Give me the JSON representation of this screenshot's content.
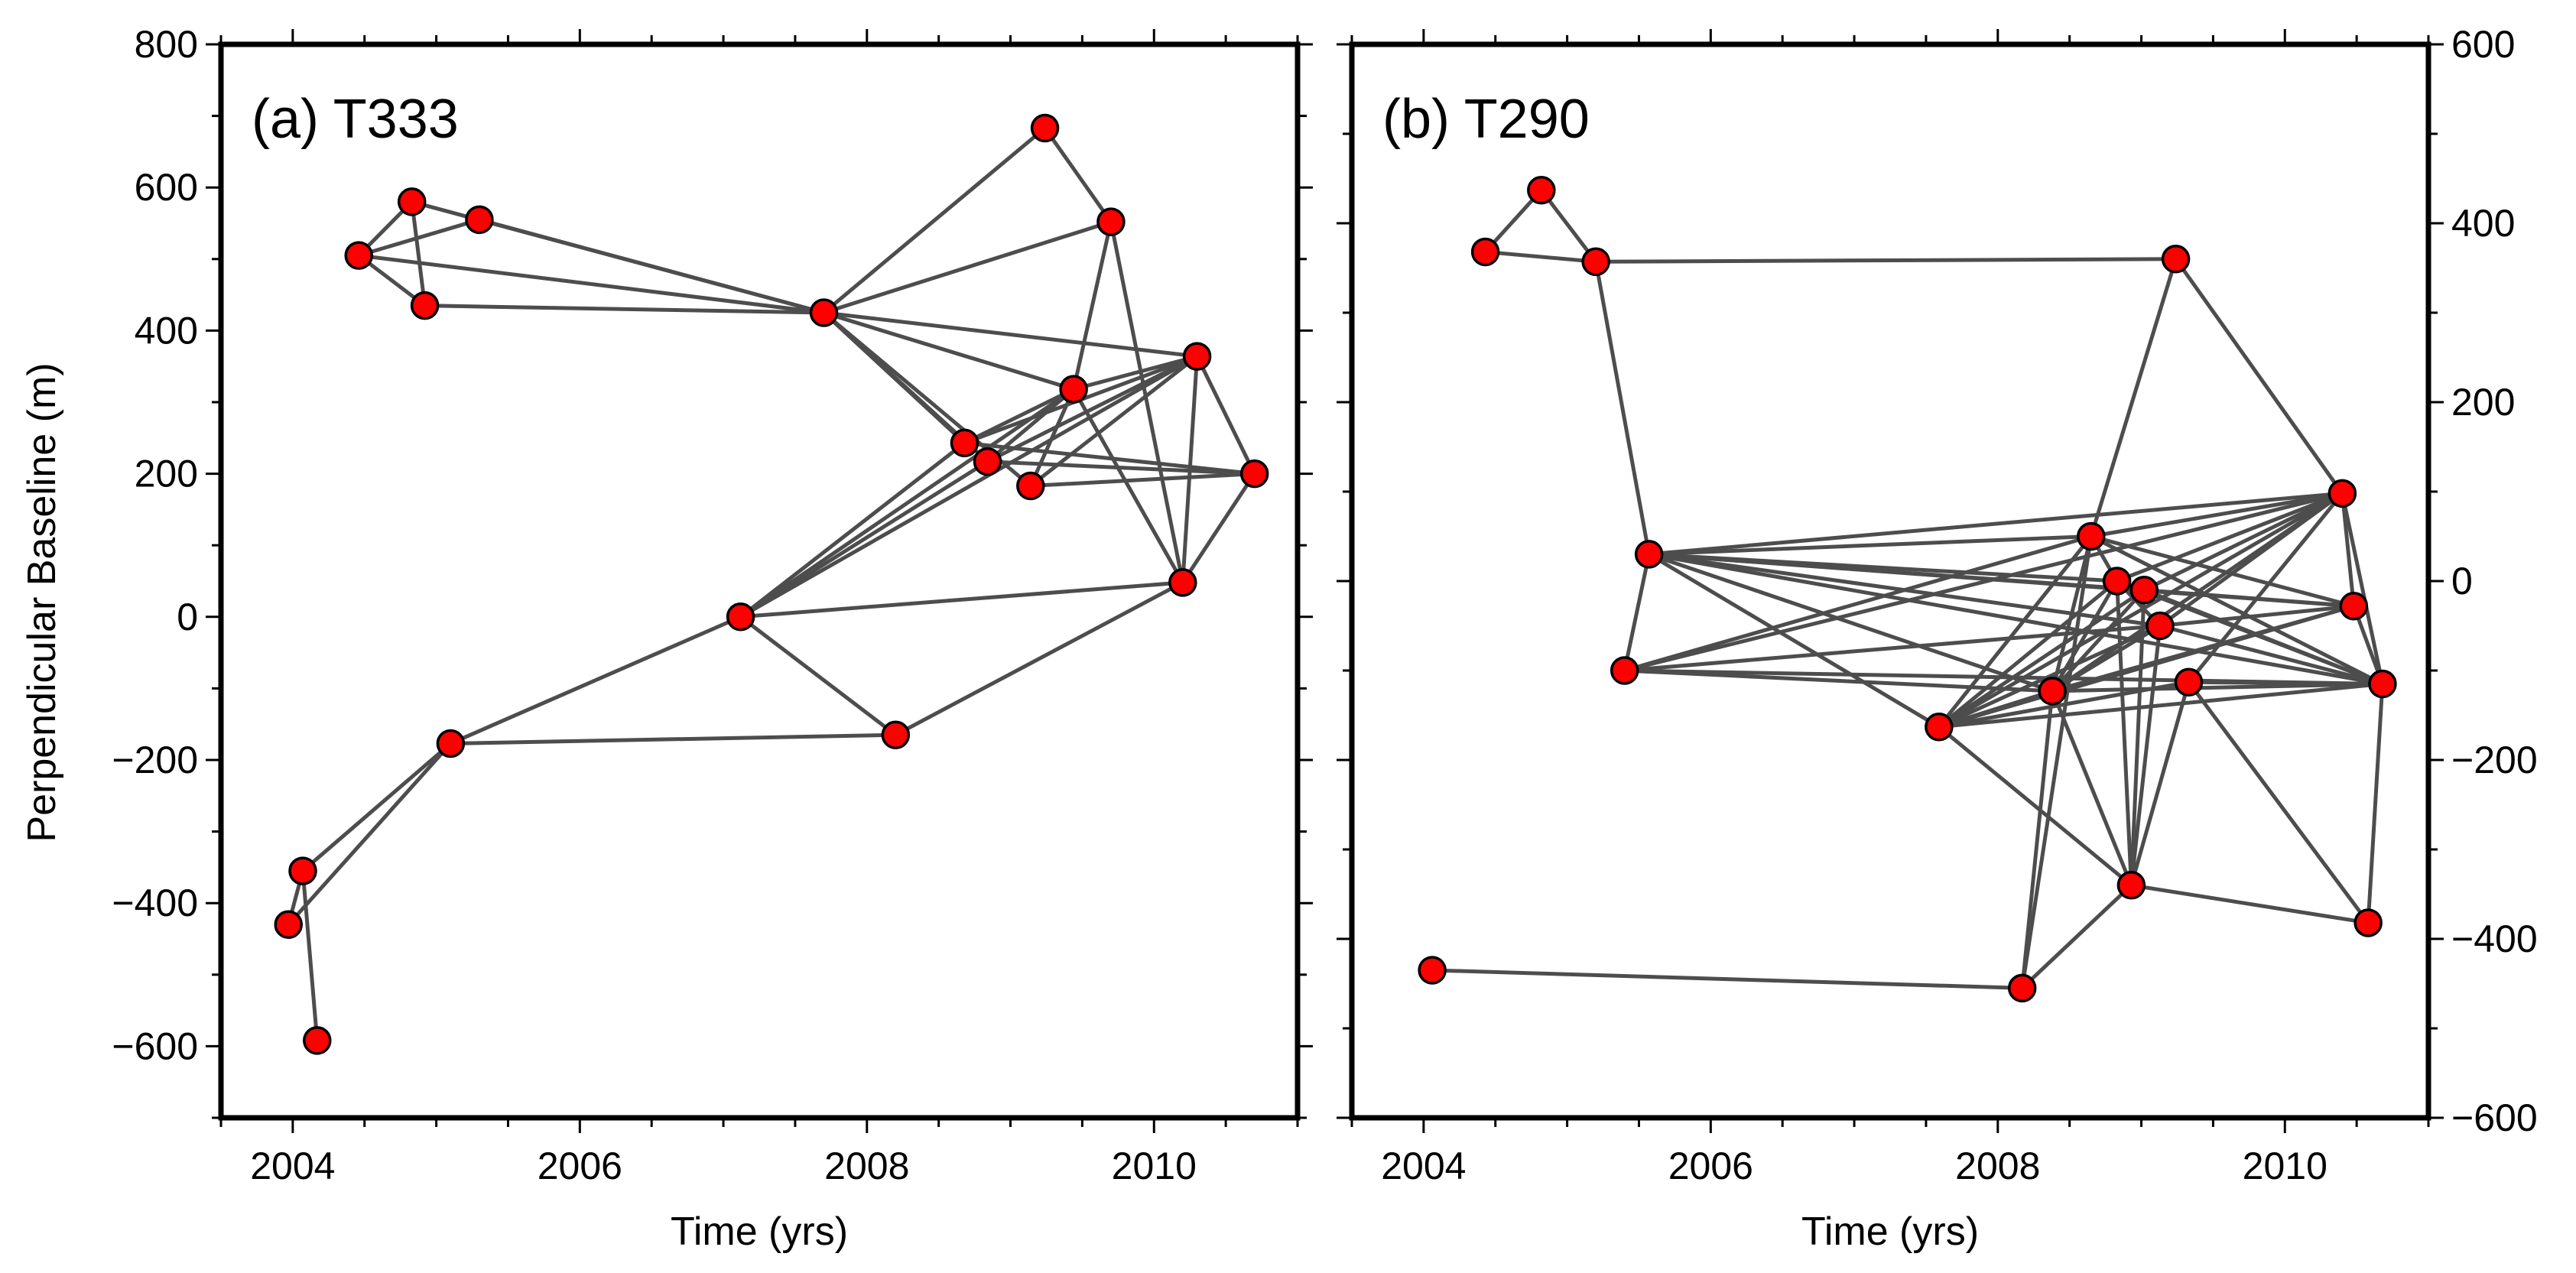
{
  "figure": {
    "ylabel": "Perpendicular Baseline (m)",
    "colors": {
      "node": "#ff0000",
      "edge": "#4d4d4d",
      "frame": "#000000"
    }
  },
  "chart_data": [
    {
      "type": "scatter",
      "title": "(a) T333",
      "xlabel": "Time (yrs)",
      "ylabel": "Perpendicular Baseline (m)",
      "xlim": [
        2003.5,
        2011.0
      ],
      "ylim": [
        -700,
        800
      ],
      "xticks": [
        2004,
        2006,
        2008,
        2010
      ],
      "xtick_labels": [
        "2004",
        "2006",
        "2008",
        "2010"
      ],
      "yticks": [
        -600,
        -400,
        -200,
        0,
        200,
        400,
        600,
        800
      ],
      "ytick_labels": [
        "−600",
        "−400",
        "−200",
        "0",
        "200",
        "400",
        "600",
        "800"
      ],
      "yaxis_side": "left",
      "nodes": [
        {
          "x": 2003.97,
          "y": -430
        },
        {
          "x": 2004.07,
          "y": -355
        },
        {
          "x": 2004.17,
          "y": -592
        },
        {
          "x": 2004.46,
          "y": 505
        },
        {
          "x": 2004.83,
          "y": 580
        },
        {
          "x": 2004.92,
          "y": 435
        },
        {
          "x": 2005.3,
          "y": 555
        },
        {
          "x": 2005.1,
          "y": -177
        },
        {
          "x": 2007.12,
          "y": 0
        },
        {
          "x": 2007.7,
          "y": 425
        },
        {
          "x": 2008.2,
          "y": -165
        },
        {
          "x": 2008.68,
          "y": 243
        },
        {
          "x": 2008.84,
          "y": 217
        },
        {
          "x": 2009.14,
          "y": 183
        },
        {
          "x": 2009.24,
          "y": 683
        },
        {
          "x": 2009.44,
          "y": 318
        },
        {
          "x": 2009.7,
          "y": 552
        },
        {
          "x": 2010.2,
          "y": 48
        },
        {
          "x": 2010.3,
          "y": 364
        },
        {
          "x": 2010.7,
          "y": 200
        }
      ],
      "edges": [
        [
          0,
          1
        ],
        [
          0,
          7
        ],
        [
          1,
          2
        ],
        [
          1,
          7
        ],
        [
          3,
          4
        ],
        [
          3,
          6
        ],
        [
          3,
          5
        ],
        [
          3,
          9
        ],
        [
          4,
          5
        ],
        [
          4,
          9
        ],
        [
          5,
          9
        ],
        [
          6,
          9
        ],
        [
          7,
          8
        ],
        [
          7,
          10
        ],
        [
          8,
          10
        ],
        [
          8,
          11
        ],
        [
          8,
          12
        ],
        [
          8,
          15
        ],
        [
          8,
          17
        ],
        [
          8,
          18
        ],
        [
          9,
          14
        ],
        [
          9,
          16
        ],
        [
          9,
          18
        ],
        [
          9,
          11
        ],
        [
          9,
          12
        ],
        [
          9,
          13
        ],
        [
          9,
          15
        ],
        [
          11,
          18
        ],
        [
          11,
          19
        ],
        [
          11,
          15
        ],
        [
          12,
          18
        ],
        [
          12,
          19
        ],
        [
          12,
          15
        ],
        [
          13,
          18
        ],
        [
          13,
          19
        ],
        [
          13,
          15
        ],
        [
          14,
          16
        ],
        [
          15,
          16
        ],
        [
          15,
          18
        ],
        [
          15,
          17
        ],
        [
          16,
          17
        ],
        [
          17,
          18
        ],
        [
          17,
          19
        ],
        [
          18,
          19
        ],
        [
          10,
          17
        ]
      ]
    },
    {
      "type": "scatter",
      "title": "(b) T290",
      "xlabel": "Time (yrs)",
      "ylabel": "",
      "xlim": [
        2003.5,
        2011.0
      ],
      "ylim": [
        -600,
        600
      ],
      "xticks": [
        2004,
        2006,
        2008,
        2010
      ],
      "xtick_labels": [
        "2004",
        "2006",
        "2008",
        "2010"
      ],
      "yticks": [
        -600,
        -400,
        -200,
        0,
        200,
        400,
        600
      ],
      "ytick_labels": [
        "−600",
        "−400",
        "−200",
        "0",
        "200",
        "400",
        "600"
      ],
      "yaxis_side": "right",
      "nodes": [
        {
          "x": 2004.06,
          "y": -435
        },
        {
          "x": 2004.43,
          "y": 368
        },
        {
          "x": 2004.82,
          "y": 437
        },
        {
          "x": 2005.2,
          "y": 357
        },
        {
          "x": 2005.4,
          "y": -100
        },
        {
          "x": 2005.57,
          "y": 30
        },
        {
          "x": 2007.59,
          "y": -163
        },
        {
          "x": 2008.17,
          "y": -455
        },
        {
          "x": 2008.38,
          "y": -123
        },
        {
          "x": 2008.65,
          "y": 50
        },
        {
          "x": 2008.83,
          "y": 0
        },
        {
          "x": 2008.93,
          "y": -340
        },
        {
          "x": 2009.02,
          "y": -10
        },
        {
          "x": 2009.13,
          "y": -50
        },
        {
          "x": 2009.24,
          "y": 360
        },
        {
          "x": 2009.33,
          "y": -113
        },
        {
          "x": 2010.4,
          "y": 98
        },
        {
          "x": 2010.48,
          "y": -28
        },
        {
          "x": 2010.58,
          "y": -382
        },
        {
          "x": 2010.68,
          "y": -115
        }
      ],
      "edges": [
        [
          0,
          7
        ],
        [
          1,
          2
        ],
        [
          1,
          3
        ],
        [
          2,
          3
        ],
        [
          3,
          14
        ],
        [
          3,
          5
        ],
        [
          4,
          5
        ],
        [
          5,
          6
        ],
        [
          5,
          8
        ],
        [
          5,
          9
        ],
        [
          5,
          10
        ],
        [
          5,
          12
        ],
        [
          5,
          13
        ],
        [
          5,
          16
        ],
        [
          5,
          17
        ],
        [
          5,
          19
        ],
        [
          4,
          8
        ],
        [
          4,
          9
        ],
        [
          4,
          13
        ],
        [
          4,
          16
        ],
        [
          4,
          19
        ],
        [
          6,
          8
        ],
        [
          6,
          9
        ],
        [
          6,
          10
        ],
        [
          6,
          11
        ],
        [
          6,
          12
        ],
        [
          6,
          13
        ],
        [
          6,
          15
        ],
        [
          6,
          16
        ],
        [
          6,
          17
        ],
        [
          6,
          19
        ],
        [
          7,
          8
        ],
        [
          7,
          11
        ],
        [
          7,
          9
        ],
        [
          8,
          9
        ],
        [
          8,
          10
        ],
        [
          8,
          12
        ],
        [
          8,
          13
        ],
        [
          8,
          16
        ],
        [
          8,
          17
        ],
        [
          8,
          19
        ],
        [
          8,
          11
        ],
        [
          9,
          10
        ],
        [
          9,
          14
        ],
        [
          9,
          16
        ],
        [
          9,
          17
        ],
        [
          9,
          19
        ],
        [
          10,
          16
        ],
        [
          10,
          19
        ],
        [
          10,
          11
        ],
        [
          12,
          16
        ],
        [
          12,
          17
        ],
        [
          12,
          19
        ],
        [
          13,
          16
        ],
        [
          13,
          17
        ],
        [
          13,
          19
        ],
        [
          11,
          12
        ],
        [
          11,
          13
        ],
        [
          11,
          18
        ],
        [
          11,
          15
        ],
        [
          15,
          16
        ],
        [
          15,
          19
        ],
        [
          16,
          19
        ],
        [
          17,
          19
        ],
        [
          18,
          19
        ],
        [
          14,
          16
        ],
        [
          16,
          17
        ],
        [
          10,
          13
        ],
        [
          15,
          18
        ]
      ]
    }
  ]
}
